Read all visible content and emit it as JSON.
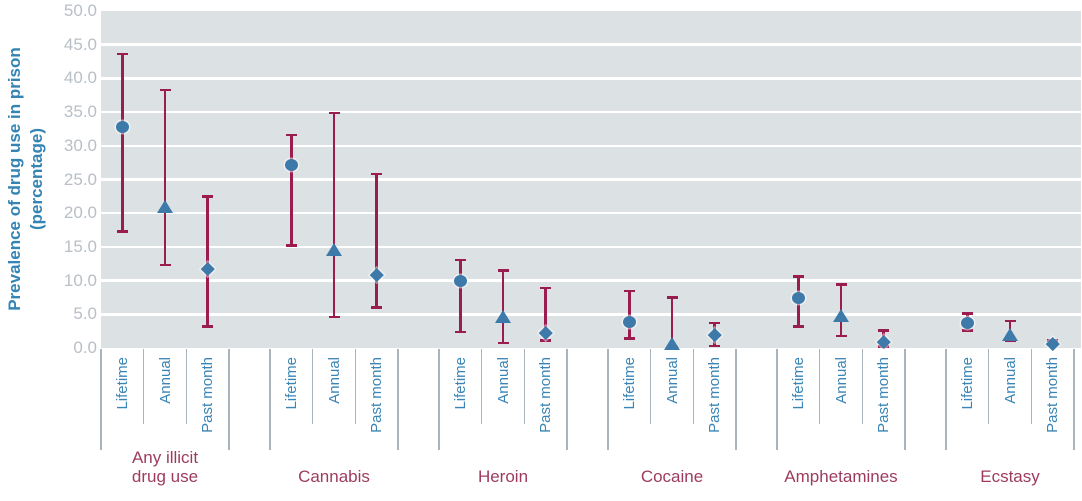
{
  "colors": {
    "plot_band": "#dce1e4",
    "gridline": "#ffffff",
    "marker": "#3d7aa9",
    "error_bar": "#9b1c4e",
    "axis_title_text": "#3484b4",
    "period_label_text": "#3a85b5",
    "y_tick_text": "#b8bfc6",
    "category_label_text": "#9d3b5f",
    "tick_line": "#a9b5be"
  },
  "y_axis": {
    "title_line1": "Prevalence of drug use in prison",
    "title_line2": "(percentage)",
    "ticks": [
      {
        "label": "50.0",
        "value": 50
      },
      {
        "label": "45.0",
        "value": 45
      },
      {
        "label": "40.0",
        "value": 40
      },
      {
        "label": "35.0",
        "value": 35
      },
      {
        "label": "30.0",
        "value": 30
      },
      {
        "label": "25.0",
        "value": 25
      },
      {
        "label": "20.0",
        "value": 20
      },
      {
        "label": "15.0",
        "value": 15
      },
      {
        "label": "10.0",
        "value": 10
      },
      {
        "label": "5.0",
        "value": 5
      },
      {
        "label": "0.0",
        "value": 0
      }
    ]
  },
  "chart_data": {
    "type": "scatter",
    "subtype": "point-estimates-with-error-bars",
    "title": "",
    "xlabel": "",
    "ylabel": "Prevalence of drug use in prison (percentage)",
    "ylim": [
      0,
      50
    ],
    "y_tick_step": 5,
    "grid": "horizontal white gridlines every 5 units on grey band background",
    "legend_position": "none",
    "series": [
      {
        "name": "Lifetime",
        "marker": "circle"
      },
      {
        "name": "Annual",
        "marker": "triangle"
      },
      {
        "name": "Past month",
        "marker": "diamond"
      }
    ],
    "groups": [
      {
        "category": "Any illicit drug use",
        "label_lines": [
          "Any illicit",
          "drug use"
        ],
        "points": [
          {
            "period": "Lifetime",
            "value": 32.8,
            "low": 17.3,
            "high": 43.6
          },
          {
            "period": "Annual",
            "value": 21.0,
            "low": 12.3,
            "high": 38.3
          },
          {
            "period": "Past month",
            "value": 11.7,
            "low": 3.2,
            "high": 22.5
          }
        ]
      },
      {
        "category": "Cannabis",
        "label_lines": [
          "Cannabis"
        ],
        "points": [
          {
            "period": "Lifetime",
            "value": 27.2,
            "low": 15.2,
            "high": 31.6
          },
          {
            "period": "Annual",
            "value": 14.6,
            "low": 4.6,
            "high": 34.9
          },
          {
            "period": "Past month",
            "value": 10.9,
            "low": 6.0,
            "high": 25.8
          }
        ]
      },
      {
        "category": "Heroin",
        "label_lines": [
          "Heroin"
        ],
        "points": [
          {
            "period": "Lifetime",
            "value": 10.0,
            "low": 2.4,
            "high": 13.1
          },
          {
            "period": "Annual",
            "value": 4.7,
            "low": 0.7,
            "high": 11.5
          },
          {
            "period": "Past month",
            "value": 2.2,
            "low": 1.1,
            "high": 8.9
          }
        ]
      },
      {
        "category": "Cocaine",
        "label_lines": [
          "Cocaine"
        ],
        "points": [
          {
            "period": "Lifetime",
            "value": 3.9,
            "low": 1.4,
            "high": 8.5
          },
          {
            "period": "Annual",
            "value": 0.7,
            "low": 0.1,
            "high": 7.5
          },
          {
            "period": "Past month",
            "value": 1.9,
            "low": 0.3,
            "high": 3.7
          }
        ]
      },
      {
        "category": "Amphetamines",
        "label_lines": [
          "Amphetamines"
        ],
        "points": [
          {
            "period": "Lifetime",
            "value": 7.4,
            "low": 3.2,
            "high": 10.6
          },
          {
            "period": "Annual",
            "value": 4.8,
            "low": 1.8,
            "high": 9.4
          },
          {
            "period": "Past month",
            "value": 0.9,
            "low": 0.2,
            "high": 2.6
          }
        ]
      },
      {
        "category": "Ecstasy",
        "label_lines": [
          "Ecstasy"
        ],
        "points": [
          {
            "period": "Lifetime",
            "value": 3.7,
            "low": 2.6,
            "high": 5.1
          },
          {
            "period": "Annual",
            "value": 2.0,
            "low": 1.0,
            "high": 4.0
          },
          {
            "period": "Past month",
            "value": 0.7,
            "low": 0.4,
            "high": 1.1
          }
        ]
      }
    ]
  }
}
